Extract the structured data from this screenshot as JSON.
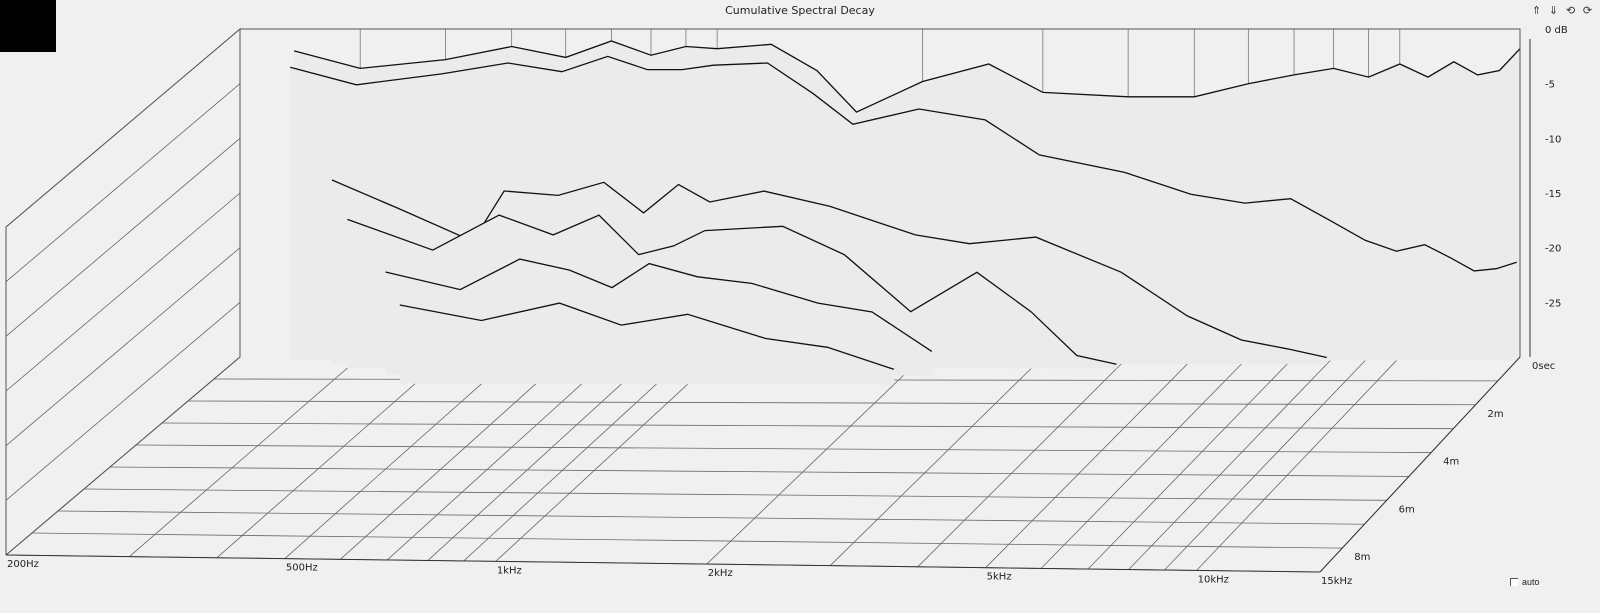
{
  "window": {
    "title": "Cumulative Spectral Decay"
  },
  "toolbar": [
    {
      "name": "move-up-icon",
      "glyph": "⇑"
    },
    {
      "name": "move-down-icon",
      "glyph": "⇓"
    },
    {
      "name": "rotate-left-icon",
      "glyph": "⟲"
    },
    {
      "name": "rotate-right-icon",
      "glyph": "⟳"
    }
  ],
  "auto_label": "auto",
  "chart_data": {
    "type": "waterfall",
    "title": "Cumulative Spectral Decay",
    "x_axis": {
      "scale": "log",
      "range_hz": [
        200,
        15000
      ],
      "tick_labels": [
        "200Hz",
        "500Hz",
        "1kHz",
        "2kHz",
        "5kHz",
        "10kHz",
        "15kHz"
      ],
      "tick_values_hz": [
        200,
        500,
        1000,
        2000,
        5000,
        10000,
        15000
      ]
    },
    "y_axis": {
      "unit": "dB",
      "range_db": [
        -30,
        0
      ],
      "tick_labels": [
        "0 dB",
        "-5",
        "-10",
        "-15",
        "-20",
        "-25"
      ],
      "tick_values_db": [
        0,
        -5,
        -10,
        -15,
        -20,
        -25
      ]
    },
    "z_axis": {
      "unit": "ms",
      "range_ms": [
        0,
        9
      ],
      "tick_labels": [
        "0sec",
        "2m",
        "4m",
        "6m",
        "8m"
      ],
      "tick_values_ms": [
        0,
        2,
        4,
        6,
        8
      ]
    },
    "slices": [
      {
        "t_ms": 0.0,
        "points": [
          [
            240,
            -2.0
          ],
          [
            300,
            -3.6
          ],
          [
            400,
            -2.8
          ],
          [
            500,
            -1.6
          ],
          [
            600,
            -2.6
          ],
          [
            700,
            -1.1
          ],
          [
            800,
            -2.4
          ],
          [
            900,
            -1.6
          ],
          [
            1000,
            -1.8
          ],
          [
            1200,
            -1.4
          ],
          [
            1400,
            -3.8
          ],
          [
            1600,
            -7.6
          ],
          [
            2000,
            -4.8
          ],
          [
            2500,
            -3.2
          ],
          [
            3000,
            -5.8
          ],
          [
            4000,
            -6.2
          ],
          [
            5000,
            -6.2
          ],
          [
            6000,
            -5.0
          ],
          [
            7000,
            -4.2
          ],
          [
            8000,
            -3.6
          ],
          [
            9000,
            -4.4
          ],
          [
            10000,
            -3.2
          ],
          [
            11000,
            -4.4
          ],
          [
            12000,
            -3.0
          ],
          [
            13000,
            -4.2
          ],
          [
            14000,
            -3.8
          ],
          [
            15000,
            -1.8
          ]
        ]
      },
      {
        "t_ms": 0.15,
        "points": [
          [
            240,
            -3.2
          ],
          [
            300,
            -4.8
          ],
          [
            400,
            -3.8
          ],
          [
            500,
            -2.8
          ],
          [
            600,
            -3.6
          ],
          [
            700,
            -2.2
          ],
          [
            800,
            -3.4
          ],
          [
            900,
            -3.4
          ],
          [
            1000,
            -3.0
          ],
          [
            1200,
            -2.8
          ],
          [
            1400,
            -5.6
          ],
          [
            1600,
            -8.4
          ],
          [
            2000,
            -7.0
          ],
          [
            2500,
            -8.0
          ],
          [
            3000,
            -11.2
          ],
          [
            4000,
            -12.8
          ],
          [
            5000,
            -14.8
          ],
          [
            6000,
            -15.6
          ],
          [
            7000,
            -15.2
          ],
          [
            8000,
            -17.2
          ],
          [
            9000,
            -19.0
          ],
          [
            10000,
            -20.0
          ],
          [
            11000,
            -19.4
          ],
          [
            12000,
            -20.6
          ],
          [
            13000,
            -21.8
          ],
          [
            14000,
            -21.6
          ],
          [
            15000,
            -21.0
          ]
        ]
      },
      {
        "t_ms": 0.3,
        "points": [
          [
            280,
            -13.2
          ],
          [
            350,
            -15.8
          ],
          [
            450,
            -18.8
          ],
          [
            500,
            -14.2
          ],
          [
            600,
            -14.6
          ],
          [
            700,
            -13.4
          ],
          [
            800,
            -16.2
          ],
          [
            900,
            -13.6
          ],
          [
            1000,
            -15.2
          ],
          [
            1200,
            -14.2
          ],
          [
            1500,
            -15.6
          ],
          [
            2000,
            -18.2
          ],
          [
            2400,
            -19.0
          ],
          [
            3000,
            -18.4
          ],
          [
            4000,
            -21.6
          ],
          [
            5000,
            -25.6
          ],
          [
            6000,
            -27.8
          ],
          [
            7000,
            -28.6
          ],
          [
            8000,
            -29.4
          ]
        ]
      },
      {
        "t_ms": 0.5,
        "points": [
          [
            300,
            -16.4
          ],
          [
            400,
            -19.2
          ],
          [
            500,
            -16.0
          ],
          [
            600,
            -17.8
          ],
          [
            700,
            -16.0
          ],
          [
            800,
            -19.6
          ],
          [
            900,
            -18.8
          ],
          [
            1000,
            -17.4
          ],
          [
            1300,
            -17.0
          ],
          [
            1600,
            -19.6
          ],
          [
            2000,
            -24.8
          ],
          [
            2500,
            -21.2
          ],
          [
            3000,
            -24.8
          ],
          [
            3500,
            -28.8
          ],
          [
            4000,
            -29.6
          ]
        ]
      },
      {
        "t_ms": 0.8,
        "points": [
          [
            350,
            -20.6
          ],
          [
            450,
            -22.2
          ],
          [
            550,
            -19.4
          ],
          [
            650,
            -20.4
          ],
          [
            750,
            -22.0
          ],
          [
            850,
            -19.8
          ],
          [
            1000,
            -21.0
          ],
          [
            1200,
            -21.6
          ],
          [
            1500,
            -23.4
          ],
          [
            1800,
            -24.2
          ],
          [
            2200,
            -27.8
          ]
        ]
      },
      {
        "t_ms": 1.2,
        "points": [
          [
            380,
            -22.8
          ],
          [
            500,
            -24.2
          ],
          [
            650,
            -22.6
          ],
          [
            800,
            -24.6
          ],
          [
            1000,
            -23.6
          ],
          [
            1300,
            -25.8
          ],
          [
            1600,
            -26.6
          ],
          [
            2000,
            -28.6
          ]
        ]
      }
    ]
  }
}
